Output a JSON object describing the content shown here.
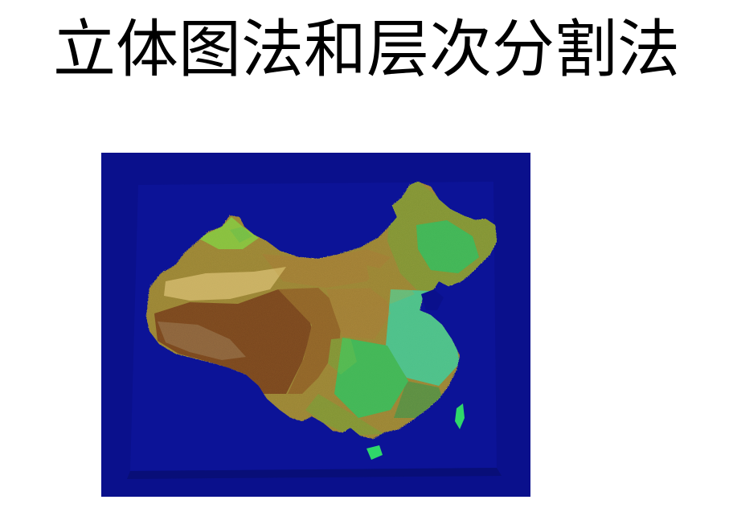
{
  "slide": {
    "title": "立体图法和层次分割法"
  },
  "map": {
    "semantic": "china-relief-map",
    "colors": {
      "ocean": "#0a108c",
      "plate": "#0c1498",
      "lowland": "#2fd86a",
      "coastal_plain": "#3fe6b0",
      "plain": "#8ee64a",
      "hills": "#c8c048",
      "plateau_low": "#d8b24a",
      "plateau_high": "#b07028",
      "mountain": "#7a2a10",
      "peak": "#c8a898",
      "desert": "#e6d07a"
    }
  }
}
